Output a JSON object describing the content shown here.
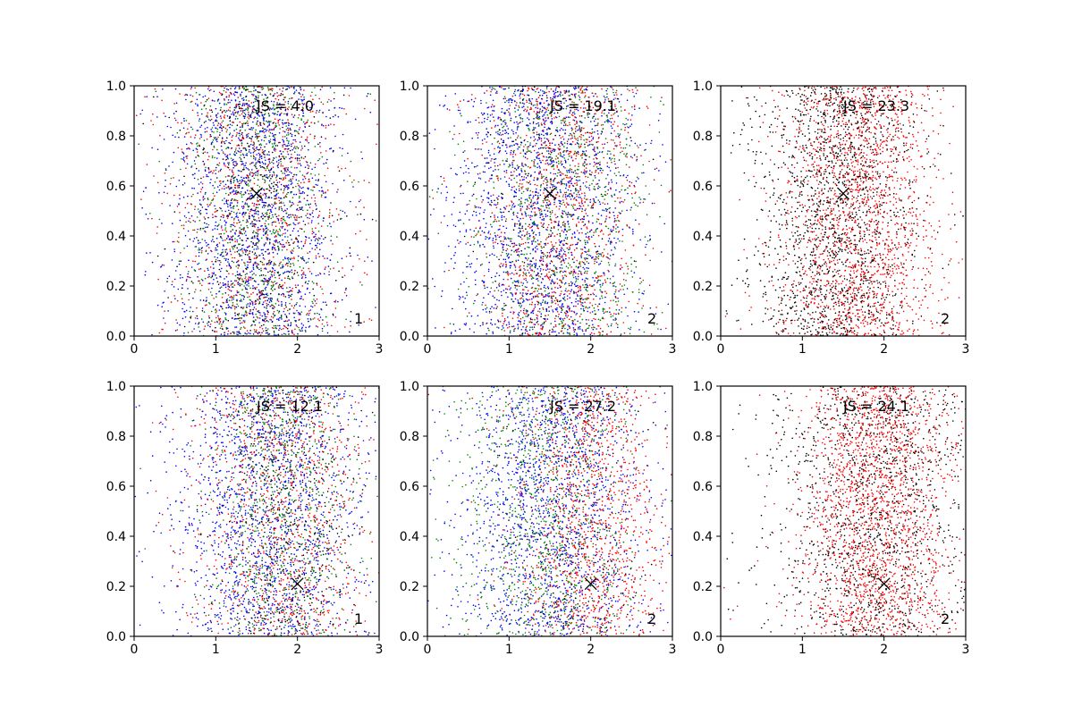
{
  "chart_data": [
    {
      "type": "scatter",
      "annotation": "JS = 4.0",
      "corner_label": "1",
      "marker": {
        "x": 1.5,
        "y": 0.57
      },
      "xlim": [
        0,
        3
      ],
      "ylim": [
        0,
        1
      ],
      "xticks": [
        "0",
        "1",
        "2",
        "3"
      ],
      "yticks": [
        "0.0",
        "0.2",
        "0.4",
        "0.6",
        "0.8",
        "1.0"
      ],
      "series": [
        {
          "color": "#0000ff",
          "center": 1.5,
          "spread": 0.55,
          "count": 1500
        },
        {
          "color": "#ff0000",
          "center": 1.5,
          "spread": 0.55,
          "count": 900
        },
        {
          "color": "#008000",
          "center": 1.5,
          "spread": 0.45,
          "count": 800
        },
        {
          "color": "#000000",
          "center": 1.5,
          "spread": 0.45,
          "count": 600
        }
      ]
    },
    {
      "type": "scatter",
      "annotation": "JS = 19.1",
      "corner_label": "2",
      "marker": {
        "x": 1.5,
        "y": 0.57
      },
      "xlim": [
        0,
        3
      ],
      "ylim": [
        0,
        1
      ],
      "xticks": [
        "0",
        "1",
        "2",
        "3"
      ],
      "yticks": [
        "0.0",
        "0.2",
        "0.4",
        "0.6",
        "0.8",
        "1.0"
      ],
      "series": [
        {
          "color": "#0000ff",
          "center": 1.4,
          "spread": 0.6,
          "count": 1600
        },
        {
          "color": "#ff0000",
          "center": 1.6,
          "spread": 0.5,
          "count": 1100
        },
        {
          "color": "#008000",
          "center": 1.7,
          "spread": 0.55,
          "count": 900
        },
        {
          "color": "#000000",
          "center": 1.5,
          "spread": 0.4,
          "count": 300
        }
      ]
    },
    {
      "type": "scatter",
      "annotation": "JS = 23.3",
      "corner_label": "2",
      "marker": {
        "x": 1.5,
        "y": 0.57
      },
      "xlim": [
        0,
        3
      ],
      "ylim": [
        0,
        1
      ],
      "xticks": [
        "0",
        "1",
        "2",
        "3"
      ],
      "yticks": [
        "0.0",
        "0.2",
        "0.4",
        "0.6",
        "0.8",
        "1.0"
      ],
      "series": [
        {
          "color": "#ff0000",
          "center": 1.7,
          "spread": 0.5,
          "count": 1800
        },
        {
          "color": "#000000",
          "center": 1.4,
          "spread": 0.5,
          "count": 1600
        }
      ]
    },
    {
      "type": "scatter",
      "annotation": "JS = 12.1",
      "corner_label": "1",
      "marker": {
        "x": 2.0,
        "y": 0.21
      },
      "xlim": [
        0,
        3
      ],
      "ylim": [
        0,
        1
      ],
      "xticks": [
        "0",
        "1",
        "2",
        "3"
      ],
      "yticks": [
        "0.0",
        "0.2",
        "0.4",
        "0.6",
        "0.8",
        "1.0"
      ],
      "series": [
        {
          "color": "#0000ff",
          "center": 1.6,
          "spread": 0.6,
          "count": 1500
        },
        {
          "color": "#ff0000",
          "center": 1.8,
          "spread": 0.55,
          "count": 1000
        },
        {
          "color": "#008000",
          "center": 1.8,
          "spread": 0.45,
          "count": 800
        },
        {
          "color": "#000000",
          "center": 1.9,
          "spread": 0.4,
          "count": 500
        }
      ]
    },
    {
      "type": "scatter",
      "annotation": "JS = 27.2",
      "corner_label": "2",
      "marker": {
        "x": 2.0,
        "y": 0.21
      },
      "xlim": [
        0,
        3
      ],
      "ylim": [
        0,
        1
      ],
      "xticks": [
        "0",
        "1",
        "2",
        "3"
      ],
      "yticks": [
        "0.0",
        "0.2",
        "0.4",
        "0.6",
        "0.8",
        "1.0"
      ],
      "series": [
        {
          "color": "#0000ff",
          "center": 1.5,
          "spread": 0.6,
          "count": 1500
        },
        {
          "color": "#ff0000",
          "center": 2.0,
          "spread": 0.45,
          "count": 1200
        },
        {
          "color": "#008000",
          "center": 1.4,
          "spread": 0.55,
          "count": 1000
        },
        {
          "color": "#000000",
          "center": 1.8,
          "spread": 0.4,
          "count": 200
        }
      ]
    },
    {
      "type": "scatter",
      "annotation": "JS = 24.1",
      "corner_label": "2",
      "marker": {
        "x": 2.0,
        "y": 0.21
      },
      "xlim": [
        0,
        3
      ],
      "ylim": [
        0,
        1
      ],
      "xticks": [
        "0",
        "1",
        "2",
        "3"
      ],
      "yticks": [
        "0.0",
        "0.2",
        "0.4",
        "0.6",
        "0.8",
        "1.0"
      ],
      "series": [
        {
          "color": "#ff0000",
          "center": 1.9,
          "spread": 0.45,
          "count": 1900
        },
        {
          "color": "#000000",
          "center": 1.9,
          "spread": 0.6,
          "count": 1300
        }
      ]
    }
  ]
}
